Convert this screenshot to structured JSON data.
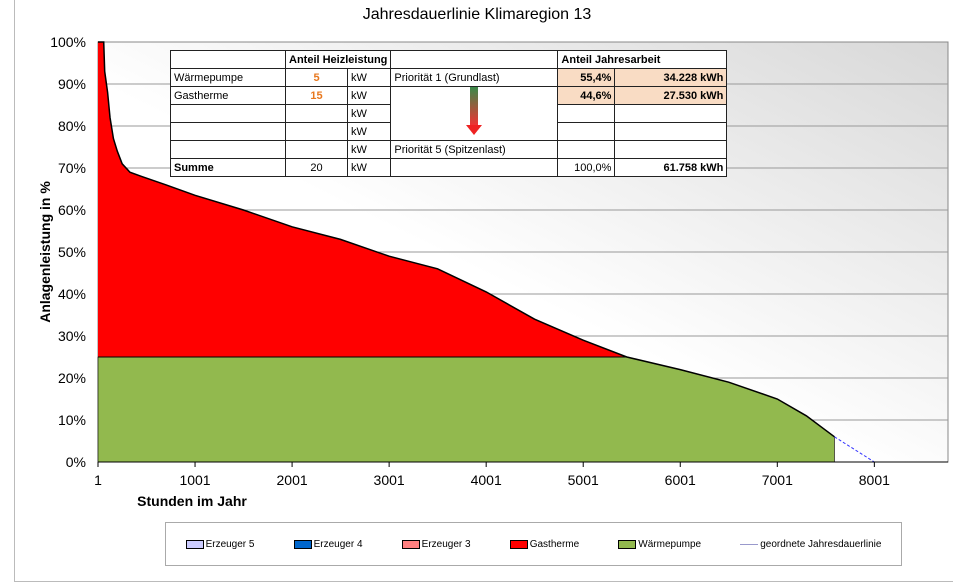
{
  "chart_data": {
    "type": "area",
    "title": "Jahresdauerlinie Klimaregion 13",
    "xlabel": "Stunden im Jahr",
    "ylabel": "Anlagenleistung in %",
    "xlim": [
      1,
      8760
    ],
    "ylim": [
      0,
      100
    ],
    "xticks": [
      "1",
      "1001",
      "2001",
      "3001",
      "4001",
      "5001",
      "6001",
      "7001",
      "8001"
    ],
    "yticks": [
      "0%",
      "10%",
      "20%",
      "30%",
      "40%",
      "50%",
      "60%",
      "70%",
      "80%",
      "90%",
      "100%"
    ],
    "curve": [
      [
        1,
        100
      ],
      [
        60,
        100
      ],
      [
        70,
        93
      ],
      [
        100,
        88
      ],
      [
        125,
        82
      ],
      [
        160,
        77
      ],
      [
        200,
        74
      ],
      [
        250,
        71
      ],
      [
        330,
        69
      ],
      [
        450,
        68
      ],
      [
        700,
        66
      ],
      [
        1001,
        63.5
      ],
      [
        1500,
        60
      ],
      [
        2001,
        56
      ],
      [
        2500,
        53
      ],
      [
        3001,
        49
      ],
      [
        3500,
        46
      ],
      [
        4001,
        40.5
      ],
      [
        4500,
        34
      ],
      [
        5001,
        29
      ],
      [
        5450,
        25
      ],
      [
        6001,
        22
      ],
      [
        6500,
        19
      ],
      [
        7001,
        15
      ],
      [
        7300,
        11
      ],
      [
        7590,
        6
      ],
      [
        8001,
        0
      ],
      [
        8760,
        0
      ]
    ],
    "series": [
      {
        "name": "Wärmepumpe",
        "color": "#92b94e",
        "level": 25,
        "until_hour": 7590
      },
      {
        "name": "Gastherme",
        "color": "#ff0000"
      },
      {
        "name": "Erzeuger 3",
        "color": "#ff8080"
      },
      {
        "name": "Erzeuger 4",
        "color": "#0066cc"
      },
      {
        "name": "Erzeuger 5",
        "color": "#ccccff"
      },
      {
        "name": "geordnete Jahresdauerlinie",
        "color": "#9999cc"
      }
    ],
    "legend_position": "bottom"
  },
  "table": {
    "h1": "Anteil Heizleistung",
    "h2": "Anteil Jahresarbeit",
    "unit": "kW",
    "rows": [
      {
        "name": "Wärmepumpe",
        "kw": "5",
        "prio": "Priorität 1 (Grundlast)",
        "pct": "55,4%",
        "kwh": "34.228 kWh"
      },
      {
        "name": "Gastherme",
        "kw": "15",
        "prio": "",
        "pct": "44,6%",
        "kwh": "27.530 kWh"
      },
      {
        "name": "",
        "kw": "",
        "prio": "",
        "pct": "",
        "kwh": ""
      },
      {
        "name": "",
        "kw": "",
        "prio": "",
        "pct": "",
        "kwh": ""
      },
      {
        "name": "",
        "kw": "",
        "prio": "Priorität 5 (Spitzenlast)",
        "pct": "",
        "kwh": ""
      }
    ],
    "sum": {
      "name": "Summe",
      "kw": "20",
      "pct": "100,0%",
      "kwh": "61.758 kWh"
    }
  },
  "legend": [
    "Erzeuger 5",
    "Erzeuger 4",
    "Erzeuger 3",
    "Gastherme",
    "Wärmepumpe",
    "geordnete Jahresdauerlinie"
  ]
}
